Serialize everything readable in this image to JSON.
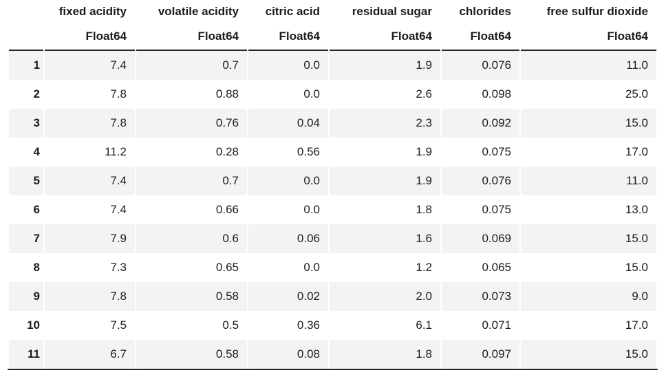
{
  "table": {
    "kind": "dataframe-preview",
    "columns": [
      {
        "name": "fixed acidity",
        "dtype": "Float64"
      },
      {
        "name": "volatile acidity",
        "dtype": "Float64"
      },
      {
        "name": "citric acid",
        "dtype": "Float64"
      },
      {
        "name": "residual sugar",
        "dtype": "Float64"
      },
      {
        "name": "chlorides",
        "dtype": "Float64"
      },
      {
        "name": "free sulfur dioxide",
        "dtype": "Float64"
      }
    ],
    "rows": [
      {
        "index": "1",
        "values": [
          "7.4",
          "0.7",
          "0.0",
          "1.9",
          "0.076",
          "11.0"
        ]
      },
      {
        "index": "2",
        "values": [
          "7.8",
          "0.88",
          "0.0",
          "2.6",
          "0.098",
          "25.0"
        ]
      },
      {
        "index": "3",
        "values": [
          "7.8",
          "0.76",
          "0.04",
          "2.3",
          "0.092",
          "15.0"
        ]
      },
      {
        "index": "4",
        "values": [
          "11.2",
          "0.28",
          "0.56",
          "1.9",
          "0.075",
          "17.0"
        ]
      },
      {
        "index": "5",
        "values": [
          "7.4",
          "0.7",
          "0.0",
          "1.9",
          "0.076",
          "11.0"
        ]
      },
      {
        "index": "6",
        "values": [
          "7.4",
          "0.66",
          "0.0",
          "1.8",
          "0.075",
          "13.0"
        ]
      },
      {
        "index": "7",
        "values": [
          "7.9",
          "0.6",
          "0.06",
          "1.6",
          "0.069",
          "15.0"
        ]
      },
      {
        "index": "8",
        "values": [
          "7.3",
          "0.65",
          "0.0",
          "1.2",
          "0.065",
          "15.0"
        ]
      },
      {
        "index": "9",
        "values": [
          "7.8",
          "0.58",
          "0.02",
          "2.0",
          "0.073",
          "9.0"
        ]
      },
      {
        "index": "10",
        "values": [
          "7.5",
          "0.5",
          "0.36",
          "6.1",
          "0.071",
          "17.0"
        ]
      },
      {
        "index": "11",
        "values": [
          "6.7",
          "0.58",
          "0.08",
          "1.8",
          "0.097",
          "15.0"
        ]
      }
    ]
  },
  "colors": {
    "background": "#ffffff",
    "row_stripe": "#f3f3f3",
    "rule_line": "#252525",
    "text": "#1c1c1c"
  }
}
